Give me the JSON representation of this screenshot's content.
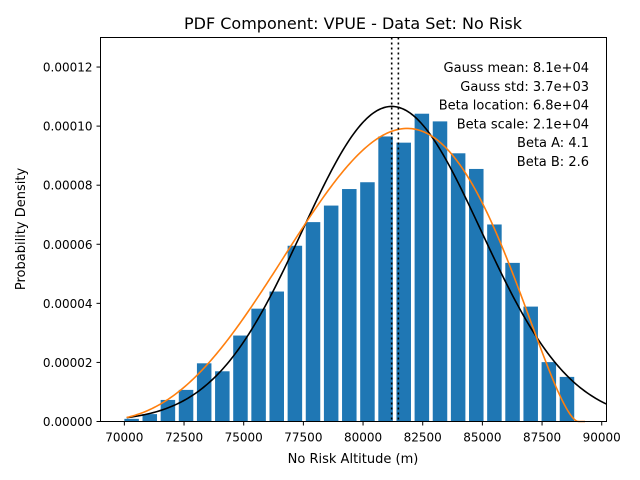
{
  "chart_data": {
    "type": "bar",
    "title": "PDF Component: VPUE - Data Set: No Risk",
    "xlabel": "No Risk Altitude (m)",
    "ylabel": "Probability Density",
    "xlim": [
      69000,
      90200
    ],
    "ylim": [
      0,
      0.00013
    ],
    "x_ticks": [
      70000,
      72500,
      75000,
      77500,
      80000,
      82500,
      85000,
      87500,
      90000
    ],
    "x_tick_labels": [
      "70000",
      "72500",
      "75000",
      "77500",
      "80000",
      "82500",
      "85000",
      "87500",
      "90000"
    ],
    "y_ticks": [
      0,
      2e-05,
      4e-05,
      6e-05,
      8e-05,
      0.0001,
      0.00012
    ],
    "y_tick_labels": [
      "0.00000",
      "0.00002",
      "0.00004",
      "0.00006",
      "0.00008",
      "0.00010",
      "0.00012"
    ],
    "grid": false,
    "histogram": {
      "color": "#1f77b4",
      "bin_start": 70000,
      "bin_width": 760,
      "bar_fraction": 0.8,
      "values": [
        9e-07,
        2.5e-06,
        7.3e-06,
        1.07e-05,
        1.97e-05,
        1.7e-05,
        2.91e-05,
        3.82e-05,
        4.4e-05,
        5.95e-05,
        6.75e-05,
        7.31e-05,
        7.87e-05,
        8.1e-05,
        9.65e-05,
        9.44e-05,
        0.0001042,
        0.0001016,
        9.08e-05,
        8.55e-05,
        6.67e-05,
        5.37e-05,
        3.89e-05,
        2.01e-05,
        1.51e-05
      ]
    },
    "series": [
      {
        "kind": "gauss",
        "color": "#000000",
        "mean": 81200,
        "std": 3740,
        "x_range": [
          70100,
          90200
        ]
      },
      {
        "kind": "beta",
        "color": "#ff7f0e",
        "location": 68000,
        "scale": 21000,
        "a": 4.1,
        "b": 2.6,
        "x_range": [
          70100,
          89300
        ]
      }
    ],
    "vlines": [
      {
        "x": 81200,
        "style": "dotted",
        "color": "#000000"
      },
      {
        "x": 81480,
        "style": "dotted",
        "color": "#000000"
      }
    ],
    "annotations": [
      "Gauss mean: 8.1e+04",
      "Gauss std: 3.7e+03",
      "Beta location: 6.8e+04",
      "Beta scale: 2.1e+04",
      "Beta A: 4.1",
      "Beta B: 2.6"
    ],
    "annotation_placement": "top-right"
  }
}
